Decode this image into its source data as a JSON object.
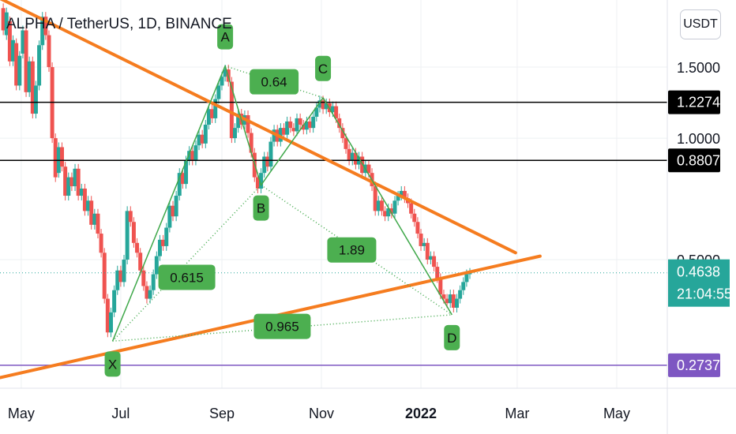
{
  "header": {
    "title": "ALPHA / TetherUS, 1D, BINANCE",
    "unit_button": "USDT"
  },
  "chart_data": {
    "type": "candlestick",
    "symbol": "ALPHA / TetherUS",
    "interval": "1D",
    "exchange": "BINANCE",
    "currency": "USDT",
    "y_scale": "log",
    "ylim": [
      0.24,
      2.2
    ],
    "xlim": [
      "2021-04-18",
      "2022-06-01"
    ],
    "x_ticks": [
      {
        "date": "2021-05-01",
        "label": "May",
        "bold": false
      },
      {
        "date": "2021-07-01",
        "label": "Jul",
        "bold": false
      },
      {
        "date": "2021-09-01",
        "label": "Sep",
        "bold": false
      },
      {
        "date": "2021-11-01",
        "label": "Nov",
        "bold": false
      },
      {
        "date": "2022-01-01",
        "label": "2022",
        "bold": true
      },
      {
        "date": "2022-03-01",
        "label": "Mar",
        "bold": false
      },
      {
        "date": "2022-05-01",
        "label": "May",
        "bold": false
      }
    ],
    "y_ticks": [
      {
        "value": 1.5,
        "label": "1.5000"
      },
      {
        "value": 1.0,
        "label": "1.0000"
      },
      {
        "value": 0.5,
        "label": "0.5000"
      }
    ],
    "colors": {
      "up": "#26a69a",
      "down": "#ef5350",
      "pattern": "#3fa84a",
      "trend": "#f57c1f",
      "current": "#26a69a",
      "support": "#7e57c2"
    },
    "candles": [
      [
        "2021-04-20",
        2.1,
        1.85
      ],
      [
        "2021-04-22",
        1.8,
        2.05
      ],
      [
        "2021-04-24",
        1.95,
        1.55
      ],
      [
        "2021-04-26",
        1.55,
        1.75
      ],
      [
        "2021-04-28",
        1.72,
        1.35
      ],
      [
        "2021-04-30",
        1.35,
        1.6
      ],
      [
        "2021-05-02",
        1.62,
        1.85
      ],
      [
        "2021-05-04",
        1.85,
        1.3
      ],
      [
        "2021-05-06",
        1.3,
        1.55
      ],
      [
        "2021-05-08",
        1.55,
        1.15
      ],
      [
        "2021-05-10",
        1.15,
        1.35
      ],
      [
        "2021-05-12",
        1.35,
        1.7
      ],
      [
        "2021-05-14",
        1.7,
        2.0
      ],
      [
        "2021-05-16",
        2.0,
        1.8
      ],
      [
        "2021-05-18",
        1.8,
        1.5
      ],
      [
        "2021-05-20",
        1.5,
        1.0
      ],
      [
        "2021-05-22",
        1.0,
        0.8
      ],
      [
        "2021-05-24",
        0.82,
        0.95
      ],
      [
        "2021-05-26",
        0.95,
        0.85
      ],
      [
        "2021-05-28",
        0.85,
        0.72
      ],
      [
        "2021-05-30",
        0.72,
        0.8
      ],
      [
        "2021-06-01",
        0.8,
        0.76
      ],
      [
        "2021-06-03",
        0.76,
        0.84
      ],
      [
        "2021-06-05",
        0.84,
        0.72
      ],
      [
        "2021-06-07",
        0.72,
        0.75
      ],
      [
        "2021-06-09",
        0.75,
        0.66
      ],
      [
        "2021-06-11",
        0.66,
        0.7
      ],
      [
        "2021-06-13",
        0.7,
        0.61
      ],
      [
        "2021-06-15",
        0.61,
        0.65
      ],
      [
        "2021-06-17",
        0.65,
        0.58
      ],
      [
        "2021-06-19",
        0.58,
        0.52
      ],
      [
        "2021-06-21",
        0.52,
        0.4
      ],
      [
        "2021-06-23",
        0.4,
        0.33
      ],
      [
        "2021-06-25",
        0.33,
        0.37
      ],
      [
        "2021-06-27",
        0.37,
        0.42
      ],
      [
        "2021-06-29",
        0.42,
        0.47
      ],
      [
        "2021-07-01",
        0.47,
        0.44
      ],
      [
        "2021-07-03",
        0.44,
        0.5
      ],
      [
        "2021-07-05",
        0.5,
        0.66
      ],
      [
        "2021-07-07",
        0.66,
        0.62
      ],
      [
        "2021-07-09",
        0.62,
        0.55
      ],
      [
        "2021-07-11",
        0.55,
        0.52
      ],
      [
        "2021-07-13",
        0.52,
        0.47
      ],
      [
        "2021-07-15",
        0.47,
        0.43
      ],
      [
        "2021-07-17",
        0.43,
        0.4
      ],
      [
        "2021-07-19",
        0.4,
        0.42
      ],
      [
        "2021-07-21",
        0.42,
        0.46
      ],
      [
        "2021-07-23",
        0.46,
        0.51
      ],
      [
        "2021-07-25",
        0.51,
        0.56
      ],
      [
        "2021-07-27",
        0.56,
        0.54
      ],
      [
        "2021-07-29",
        0.54,
        0.6
      ],
      [
        "2021-07-31",
        0.6,
        0.68
      ],
      [
        "2021-08-02",
        0.68,
        0.64
      ],
      [
        "2021-08-04",
        0.64,
        0.72
      ],
      [
        "2021-08-06",
        0.72,
        0.82
      ],
      [
        "2021-08-08",
        0.82,
        0.77
      ],
      [
        "2021-08-10",
        0.77,
        0.88
      ],
      [
        "2021-08-12",
        0.88,
        0.93
      ],
      [
        "2021-08-14",
        0.93,
        0.88
      ],
      [
        "2021-08-16",
        0.88,
        0.96
      ],
      [
        "2021-08-18",
        0.96,
        1.02
      ],
      [
        "2021-08-20",
        1.02,
        0.97
      ],
      [
        "2021-08-22",
        0.97,
        1.08
      ],
      [
        "2021-08-24",
        1.08,
        1.18
      ],
      [
        "2021-08-26",
        1.18,
        1.12
      ],
      [
        "2021-08-28",
        1.12,
        1.25
      ],
      [
        "2021-08-30",
        1.25,
        1.35
      ],
      [
        "2021-09-01",
        1.35,
        1.42
      ],
      [
        "2021-09-03",
        1.42,
        1.48
      ],
      [
        "2021-09-05",
        1.48,
        1.38
      ],
      [
        "2021-09-07",
        1.38,
        1.0
      ],
      [
        "2021-09-09",
        1.0,
        1.06
      ],
      [
        "2021-09-11",
        1.06,
        1.15
      ],
      [
        "2021-09-13",
        1.15,
        1.08
      ],
      [
        "2021-09-15",
        1.08,
        1.14
      ],
      [
        "2021-09-17",
        1.14,
        1.03
      ],
      [
        "2021-09-19",
        1.03,
        0.92
      ],
      [
        "2021-09-21",
        0.92,
        0.8
      ],
      [
        "2021-09-23",
        0.8,
        0.75
      ],
      [
        "2021-09-25",
        0.75,
        0.82
      ],
      [
        "2021-09-27",
        0.82,
        0.9
      ],
      [
        "2021-09-29",
        0.9,
        0.85
      ],
      [
        "2021-10-01",
        0.85,
        0.98
      ],
      [
        "2021-10-03",
        0.98,
        1.05
      ],
      [
        "2021-10-05",
        1.05,
        0.98
      ],
      [
        "2021-10-07",
        0.98,
        1.06
      ],
      [
        "2021-10-09",
        1.06,
        1.02
      ],
      [
        "2021-10-11",
        1.02,
        1.1
      ],
      [
        "2021-10-13",
        1.1,
        1.06
      ],
      [
        "2021-10-15",
        1.06,
        1.04
      ],
      [
        "2021-10-17",
        1.04,
        1.12
      ],
      [
        "2021-10-19",
        1.12,
        1.08
      ],
      [
        "2021-10-21",
        1.08,
        1.05
      ],
      [
        "2021-10-23",
        1.05,
        1.1
      ],
      [
        "2021-10-25",
        1.1,
        1.06
      ],
      [
        "2021-10-27",
        1.06,
        1.13
      ],
      [
        "2021-10-29",
        1.13,
        1.19
      ],
      [
        "2021-10-31",
        1.19,
        1.24
      ],
      [
        "2021-11-02",
        1.24,
        1.18
      ],
      [
        "2021-11-04",
        1.18,
        1.22
      ],
      [
        "2021-11-06",
        1.22,
        1.16
      ],
      [
        "2021-11-08",
        1.16,
        1.2
      ],
      [
        "2021-11-10",
        1.2,
        1.12
      ],
      [
        "2021-11-12",
        1.12,
        1.06
      ],
      [
        "2021-11-14",
        1.06,
        1.0
      ],
      [
        "2021-11-16",
        1.0,
        0.94
      ],
      [
        "2021-11-18",
        0.94,
        0.88
      ],
      [
        "2021-11-20",
        0.88,
        0.92
      ],
      [
        "2021-11-22",
        0.92,
        0.86
      ],
      [
        "2021-11-24",
        0.86,
        0.9
      ],
      [
        "2021-11-26",
        0.9,
        0.82
      ],
      [
        "2021-11-28",
        0.82,
        0.86
      ],
      [
        "2021-11-30",
        0.86,
        0.82
      ],
      [
        "2021-12-02",
        0.82,
        0.76
      ],
      [
        "2021-12-04",
        0.76,
        0.66
      ],
      [
        "2021-12-06",
        0.66,
        0.7
      ],
      [
        "2021-12-08",
        0.7,
        0.66
      ],
      [
        "2021-12-10",
        0.66,
        0.64
      ],
      [
        "2021-12-12",
        0.64,
        0.67
      ],
      [
        "2021-12-14",
        0.67,
        0.65
      ],
      [
        "2021-12-16",
        0.65,
        0.7
      ],
      [
        "2021-12-18",
        0.7,
        0.72
      ],
      [
        "2021-12-20",
        0.72,
        0.74
      ],
      [
        "2021-12-22",
        0.74,
        0.71
      ],
      [
        "2021-12-24",
        0.71,
        0.69
      ],
      [
        "2021-12-26",
        0.69,
        0.65
      ],
      [
        "2021-12-28",
        0.65,
        0.62
      ],
      [
        "2021-12-30",
        0.62,
        0.58
      ],
      [
        "2022-01-01",
        0.58,
        0.54
      ],
      [
        "2022-01-03",
        0.54,
        0.55
      ],
      [
        "2022-01-05",
        0.55,
        0.5
      ],
      [
        "2022-01-07",
        0.5,
        0.51
      ],
      [
        "2022-01-09",
        0.51,
        0.48
      ],
      [
        "2022-01-11",
        0.48,
        0.45
      ],
      [
        "2022-01-13",
        0.45,
        0.41
      ],
      [
        "2022-01-15",
        0.41,
        0.4
      ],
      [
        "2022-01-17",
        0.4,
        0.39
      ],
      [
        "2022-01-19",
        0.39,
        0.41
      ],
      [
        "2022-01-21",
        0.41,
        0.38
      ],
      [
        "2022-01-23",
        0.38,
        0.4
      ],
      [
        "2022-01-25",
        0.4,
        0.42
      ],
      [
        "2022-01-27",
        0.42,
        0.44
      ],
      [
        "2022-01-29",
        0.44,
        0.46
      ],
      [
        "2022-01-31",
        0.46,
        0.4638
      ]
    ],
    "horizontal_lines": [
      {
        "value": 1.2274,
        "label": "1.2274",
        "style": "solid",
        "color": "#000000",
        "badge_bg": "#000000"
      },
      {
        "value": 0.8807,
        "label": "0.8807",
        "style": "solid",
        "color": "#000000",
        "badge_bg": "#000000"
      },
      {
        "value": 0.2737,
        "label": "0.2737",
        "style": "solid",
        "color": "#7e57c2",
        "badge_bg": "#7e57c2"
      },
      {
        "value": 0.4638,
        "label": "0.4638",
        "style": "dotted",
        "color": "#26a69a",
        "badge_bg": "#26a69a"
      }
    ],
    "countdown_label": "21:04:55",
    "trendlines": [
      {
        "from": [
          "2021-04-01",
          2.4
        ],
        "to": [
          "2022-02-28",
          0.52
        ]
      },
      {
        "from": [
          "2021-04-18",
          0.255
        ],
        "to": [
          "2022-03-15",
          0.51
        ]
      }
    ],
    "pattern": {
      "points": [
        {
          "label": "X",
          "date": "2021-06-26",
          "value": 0.314
        },
        {
          "label": "A",
          "date": "2021-09-03",
          "value": 1.51
        },
        {
          "label": "B",
          "date": "2021-09-25",
          "value": 0.765
        },
        {
          "label": "C",
          "date": "2021-11-02",
          "value": 1.26
        },
        {
          "label": "D",
          "date": "2022-01-20",
          "value": 0.365
        }
      ],
      "ratios": [
        {
          "label": "0.615",
          "between": [
            "X",
            "B"
          ]
        },
        {
          "label": "0.64",
          "between": [
            "A",
            "C"
          ]
        },
        {
          "label": "1.89",
          "between": [
            "B",
            "D"
          ]
        },
        {
          "label": "0.965",
          "between": [
            "X",
            "D"
          ]
        }
      ]
    }
  }
}
